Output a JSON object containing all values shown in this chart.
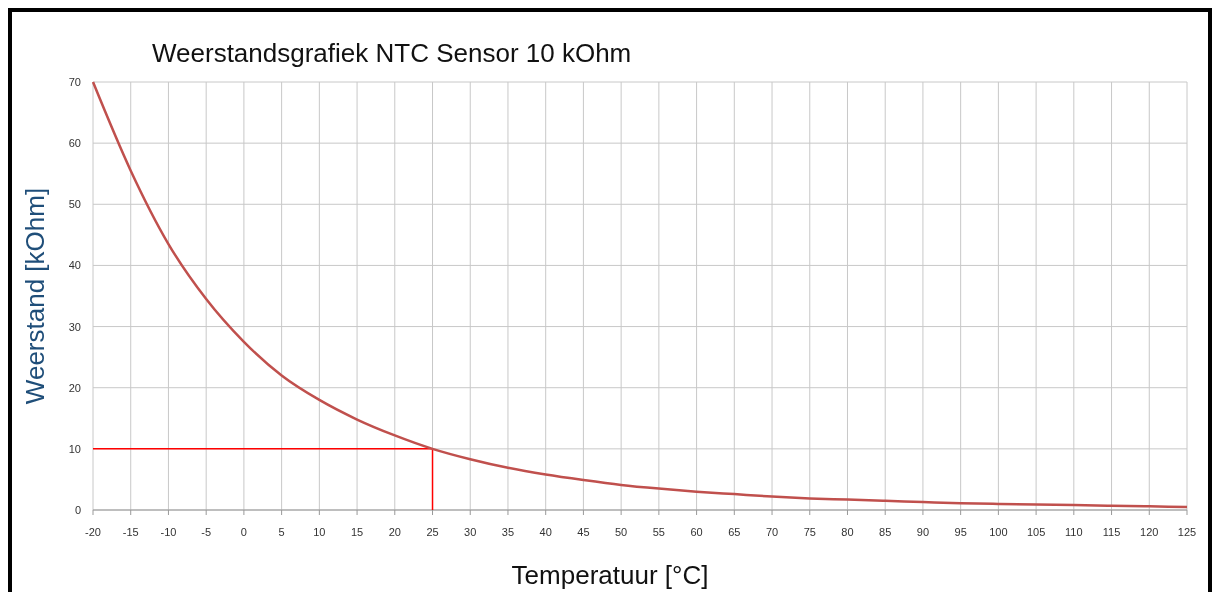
{
  "chart_data": {
    "type": "line",
    "title": "Weerstandsgrafiek NTC Sensor 10 kOhm",
    "xlabel": "Temperatuur [°C]",
    "ylabel": "Weerstand [kOhm]",
    "x": [
      -20,
      -15,
      -10,
      -5,
      0,
      5,
      10,
      15,
      20,
      25,
      30,
      35,
      40,
      45,
      50,
      55,
      60,
      65,
      70,
      75,
      80,
      85,
      90,
      95,
      100,
      105,
      110,
      115,
      120,
      125
    ],
    "series": [
      {
        "color": "#c0504d",
        "values": [
          70,
          55.5,
          43.5,
          34.5,
          27.5,
          22,
          18,
          14.8,
          12.2,
          10,
          8.3,
          6.9,
          5.8,
          4.9,
          4.1,
          3.5,
          3.0,
          2.6,
          2.2,
          1.9,
          1.7,
          1.5,
          1.3,
          1.1,
          1.0,
          0.9,
          0.8,
          0.7,
          0.6,
          0.5
        ]
      }
    ],
    "ref_lines": [
      {
        "axis": "y",
        "value": 10,
        "color": "#ff0000"
      },
      {
        "axis": "x",
        "value": 25,
        "color": "#ff0000"
      }
    ],
    "xlim": [
      -20,
      125
    ],
    "xticks": [
      -20,
      -15,
      -10,
      -5,
      0,
      5,
      10,
      15,
      20,
      25,
      30,
      35,
      40,
      45,
      50,
      55,
      60,
      65,
      70,
      75,
      80,
      85,
      90,
      95,
      100,
      105,
      110,
      115,
      120,
      125
    ],
    "ylim": [
      0,
      70
    ],
    "yticks": [
      0,
      10,
      20,
      30,
      40,
      50,
      60,
      70
    ],
    "grid": true,
    "marker": "none",
    "line_style": "solid"
  }
}
